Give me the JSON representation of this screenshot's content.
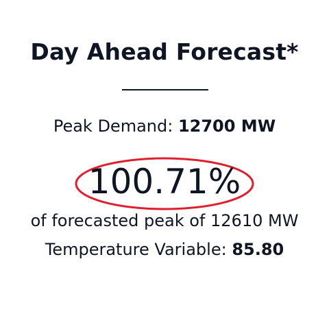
{
  "title": "Day Ahead Forecast*",
  "peak_demand": {
    "label": "Peak Demand:",
    "value": "12700 MW"
  },
  "percentage": "100.71%",
  "forecast_note": "of forecasted peak of 12610 MW",
  "temperature": {
    "label": "Temperature Variable:",
    "value": "85.80"
  },
  "colors": {
    "text": "#0f1523",
    "highlight_ring": "#e01f2d"
  }
}
